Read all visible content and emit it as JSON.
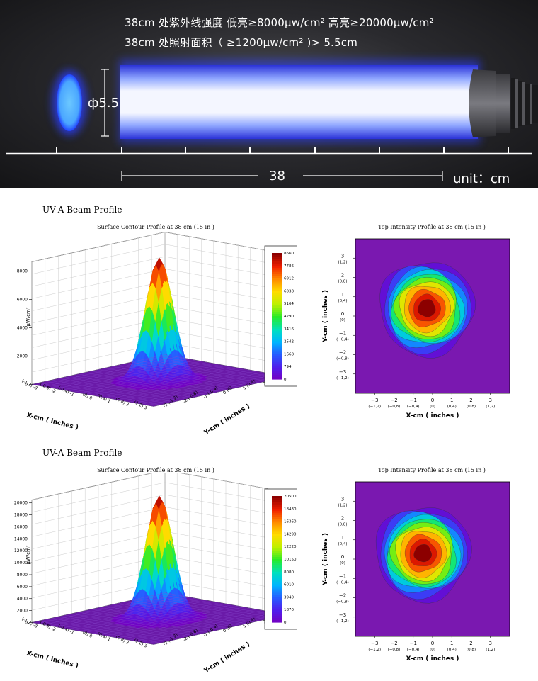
{
  "banner": {
    "line1": "38cm 处紫外线强度  低亮≥8000μw/cm²    高亮≥20000μw/cm²",
    "line2": "38cm 处照射面积（ ≥1200μw/cm² )> 5.5cm",
    "diameter": "ф5.5",
    "distance": "38",
    "unit": "unit：cm",
    "colors": {
      "beam": "#3a4dff",
      "spot": "#5ab8ff",
      "background": "#1c1c1f"
    }
  },
  "sections": [
    {
      "title": "UV-A Beam Profile",
      "surface_title": "Surface Contour Profile at 38 cm (15 in )",
      "top_title": "Top Intensity Profile at 38 cm (15 in )"
    },
    {
      "title": "UV-A Beam Profile",
      "surface_title": "Surface Contour Profile at 38 cm (15 in )",
      "top_title": "Top Intensity Profile at 38 cm (15 in )"
    }
  ],
  "chart_data": [
    {
      "type": "surface",
      "zlabel": "μW/cm²",
      "xlabel": "X-cm ( inches )",
      "ylabel": "Y-cm ( inches )",
      "peak": 8660,
      "zlim": [
        0,
        8660
      ],
      "z_ticks": [
        "0",
        "2000",
        "4000",
        "6000",
        "8000"
      ],
      "x_ticks": [
        "(-1.2) -3",
        "(-0.8) -2",
        "(-0.4) -1",
        "(0) 0",
        "(0.4) 1",
        "(0.8) 2",
        "(1.2) 3"
      ],
      "y_ticks": [
        "3 (1.2)",
        "2 (0.8)",
        "1 (0.4)",
        "0 (0)",
        "-1 (-0.4)",
        "-2 (-0.8)",
        "-3 (-1.2)"
      ],
      "colorbar": [
        "8660",
        "7786",
        "6912",
        "6038",
        "5164",
        "4290",
        "3416",
        "2542",
        "1668",
        "794",
        "0"
      ]
    },
    {
      "type": "heatmap",
      "xlabel": "X-cm ( inches )",
      "ylabel": "Y-cm ( inches )",
      "x_ticks": [
        {
          "cm": "−3",
          "in": "(−1,2)"
        },
        {
          "cm": "−2",
          "in": "(−0,8)"
        },
        {
          "cm": "−1",
          "in": "(−0,4)"
        },
        {
          "cm": "0",
          "in": "(0)"
        },
        {
          "cm": "1",
          "in": "(0,4)"
        },
        {
          "cm": "2",
          "in": "(0,8)"
        },
        {
          "cm": "3",
          "in": "(1,2)"
        }
      ],
      "y_ticks": [
        {
          "cm": "3",
          "in": "(1,2)"
        },
        {
          "cm": "2",
          "in": "(0,8)"
        },
        {
          "cm": "1",
          "in": "(0,4)"
        },
        {
          "cm": "0",
          "in": "(0)"
        },
        {
          "cm": "−1",
          "in": "(−0,4)"
        },
        {
          "cm": "−2",
          "in": "(−0,8)"
        },
        {
          "cm": "−3",
          "in": "(−1,2)"
        }
      ],
      "center": [
        -0.3,
        0.4
      ]
    },
    {
      "type": "surface",
      "zlabel": "μW/cm²",
      "xlabel": "X-cm ( inches )",
      "ylabel": "Y-cm ( inches )",
      "peak": 20500,
      "zlim": [
        0,
        20500
      ],
      "z_ticks": [
        "0",
        "2000",
        "4000",
        "6000",
        "8000",
        "10000",
        "12000",
        "14000",
        "16000",
        "18000",
        "20000"
      ],
      "x_ticks": [
        "(-1.2) -3",
        "(-0.8) -2",
        "(-0.4) -1",
        "(0) 0",
        "(0.4) 1",
        "(0.8) 2",
        "(1.2) 3"
      ],
      "y_ticks": [
        "3 (1.2)",
        "2 (0.8)",
        "1 (0.4)",
        "0 (0)",
        "-1 (-0.4)",
        "-2 (-0.8)",
        "-3 (-1.2)"
      ],
      "colorbar": [
        "20500",
        "18430",
        "16360",
        "14290",
        "12220",
        "10150",
        "8080",
        "6010",
        "3940",
        "1870",
        "0"
      ]
    },
    {
      "type": "heatmap",
      "xlabel": "X-cm ( inches )",
      "ylabel": "Y-cm ( inches )",
      "x_ticks": [
        {
          "cm": "−3",
          "in": "(−1,2)"
        },
        {
          "cm": "−2",
          "in": "(−0,8)"
        },
        {
          "cm": "−1",
          "in": "(−0,4)"
        },
        {
          "cm": "0",
          "in": "(0)"
        },
        {
          "cm": "1",
          "in": "(0,4)"
        },
        {
          "cm": "2",
          "in": "(0,8)"
        },
        {
          "cm": "3",
          "in": "(1,2)"
        }
      ],
      "y_ticks": [
        {
          "cm": "3",
          "in": "(1,2)"
        },
        {
          "cm": "2",
          "in": "(0,8)"
        },
        {
          "cm": "1",
          "in": "(0,4)"
        },
        {
          "cm": "0",
          "in": "(0)"
        },
        {
          "cm": "−1",
          "in": "(−0,4)"
        },
        {
          "cm": "−2",
          "in": "(−0,8)"
        },
        {
          "cm": "−3",
          "in": "(−1,2)"
        }
      ],
      "center": [
        -0.5,
        0.3
      ]
    }
  ]
}
